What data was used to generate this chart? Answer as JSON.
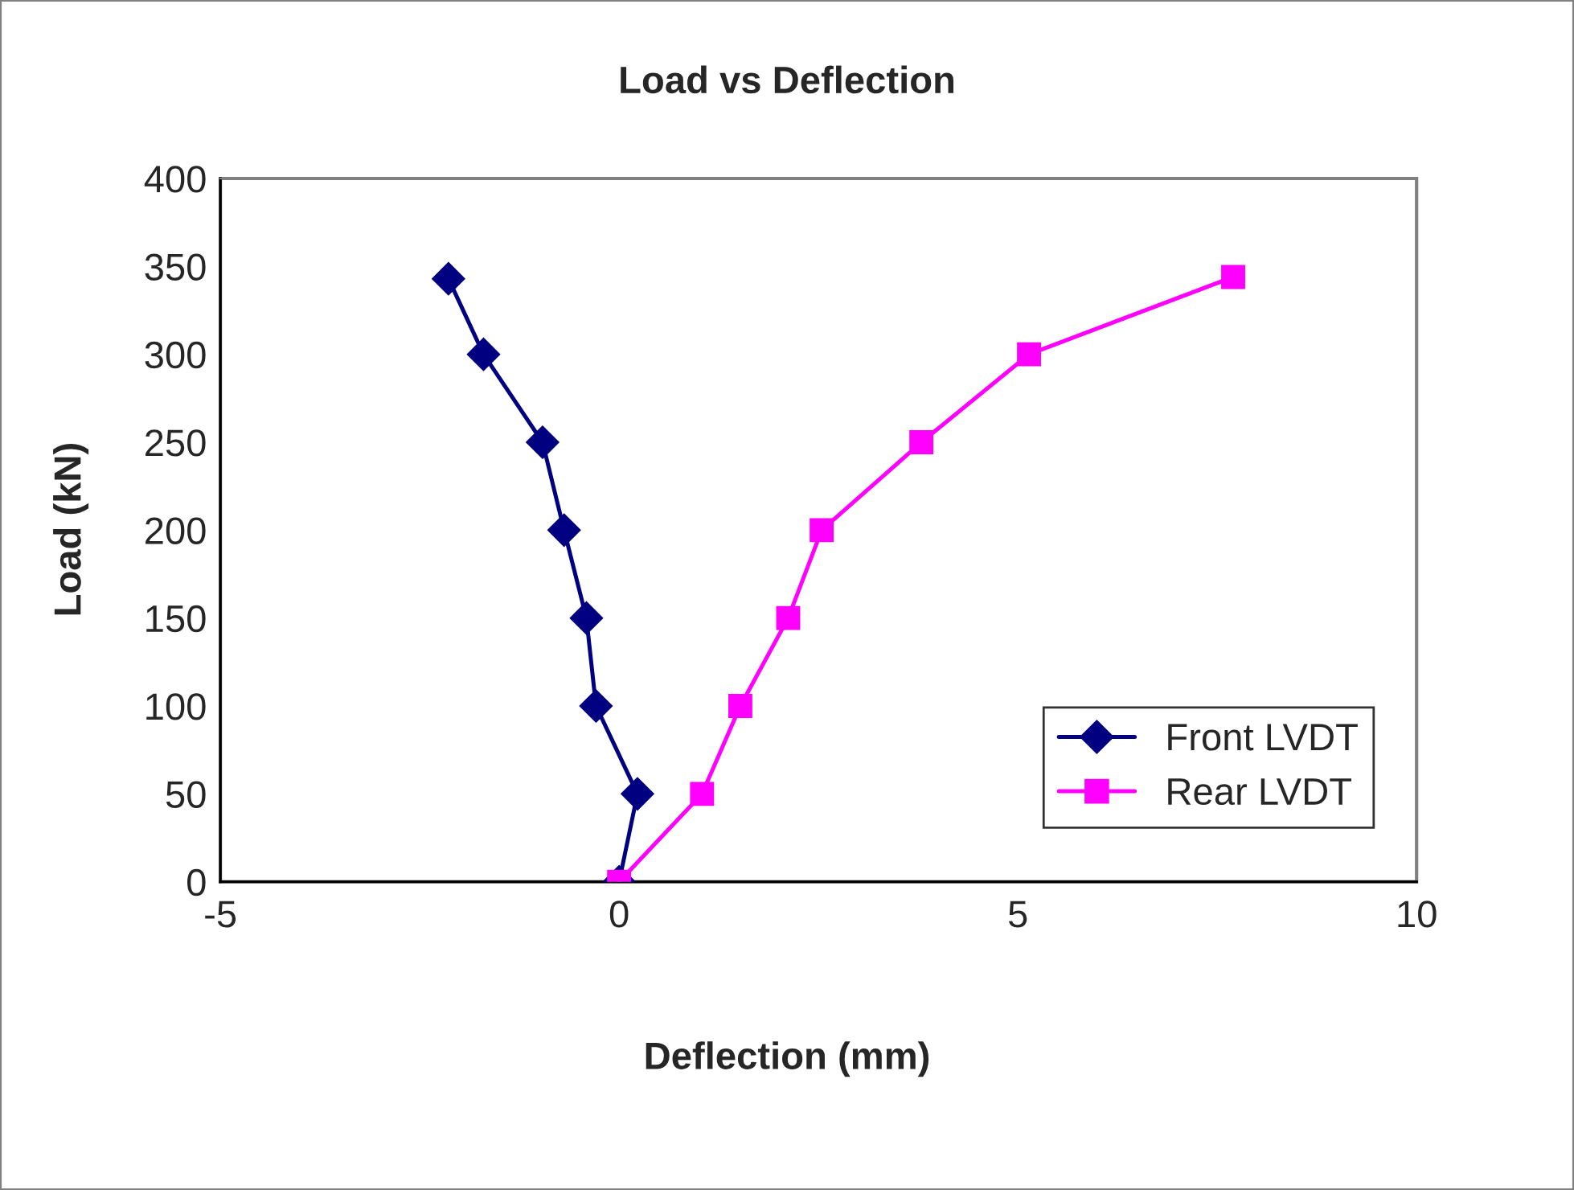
{
  "chart_data": {
    "type": "line",
    "title": "Load vs Deflection",
    "xlabel": "Deflection (mm)",
    "ylabel": "Load (kN)",
    "series": [
      {
        "name": "Front LVDT",
        "color": "#000080",
        "marker": "diamond",
        "x": [
          0,
          0.23,
          -0.29,
          -0.41,
          -0.69,
          -0.96,
          -1.7,
          -2.14
        ],
        "values": [
          0,
          50,
          100,
          150,
          200,
          250,
          300,
          343
        ]
      },
      {
        "name": "Rear LVDT",
        "color": "#ff00ff",
        "marker": "square",
        "x": [
          0,
          1.04,
          1.52,
          2.12,
          2.54,
          3.79,
          5.14,
          7.7
        ],
        "values": [
          0,
          50,
          100,
          150,
          200,
          250,
          300,
          344
        ]
      }
    ],
    "xlim": [
      -5,
      10
    ],
    "xticks": [
      -5,
      0,
      5,
      10
    ],
    "ylim": [
      0,
      400
    ],
    "yticks": [
      0,
      50,
      100,
      150,
      200,
      250,
      300,
      350,
      400
    ],
    "grid": false,
    "legend": "bottom right"
  }
}
